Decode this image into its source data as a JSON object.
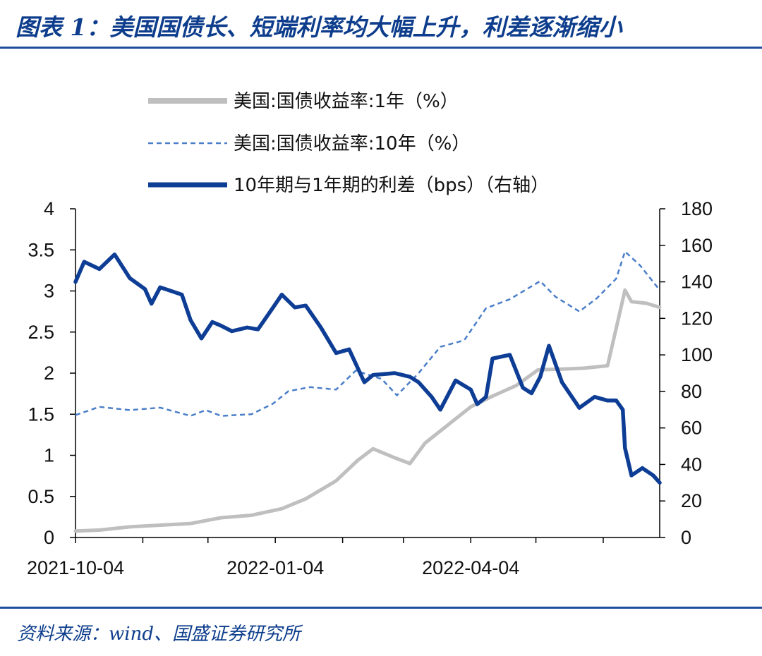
{
  "header": {
    "title": "图表 1：美国国债长、短端利率均大幅上升，利差逐渐缩小"
  },
  "footer": {
    "source": "资料来源：wind、国盛证券研究所"
  },
  "chart_data": {
    "type": "line",
    "title": "图表 1：美国国债长、短端利率均大幅上升，利差逐渐缩小",
    "x_type": "date",
    "xlim": [
      "2021-10-04",
      "2022-06-30"
    ],
    "x_tick_labels": [
      "2021-10-04",
      "2022-01-04",
      "2022-04-04"
    ],
    "ylim": [
      0,
      4
    ],
    "y_ticks": [
      0,
      0.5,
      1,
      1.5,
      2,
      2.5,
      3,
      3.5,
      4
    ],
    "y2lim": [
      0,
      180
    ],
    "y2_ticks": [
      0,
      20,
      40,
      60,
      80,
      100,
      120,
      140,
      160,
      180
    ],
    "legend_position": "top-center",
    "grid": false,
    "colors": {
      "one_year": "#bfbfbf",
      "ten_year": "#4a7ec8",
      "spread": "#0d3d94"
    },
    "series": [
      {
        "name": "美国:国债收益率:1年（%）",
        "axis": "left",
        "style": "solid-thick",
        "color": "#bfbfbf",
        "points": [
          [
            "2021-10-04",
            0.08
          ],
          [
            "2021-10-15",
            0.09
          ],
          [
            "2021-10-29",
            0.13
          ],
          [
            "2021-11-12",
            0.15
          ],
          [
            "2021-11-26",
            0.17
          ],
          [
            "2021-12-10",
            0.24
          ],
          [
            "2021-12-24",
            0.27
          ],
          [
            "2022-01-07",
            0.35
          ],
          [
            "2022-01-18",
            0.47
          ],
          [
            "2022-02-01",
            0.69
          ],
          [
            "2022-02-11",
            0.94
          ],
          [
            "2022-02-18",
            1.08
          ],
          [
            "2022-02-28",
            0.97
          ],
          [
            "2022-03-07",
            0.9
          ],
          [
            "2022-03-14",
            1.15
          ],
          [
            "2022-03-25",
            1.38
          ],
          [
            "2022-04-04",
            1.59
          ],
          [
            "2022-04-14",
            1.72
          ],
          [
            "2022-04-25",
            1.85
          ],
          [
            "2022-05-05",
            2.04
          ],
          [
            "2022-05-16",
            2.05
          ],
          [
            "2022-05-26",
            2.06
          ],
          [
            "2022-06-06",
            2.09
          ],
          [
            "2022-06-14",
            3.01
          ],
          [
            "2022-06-17",
            2.87
          ],
          [
            "2022-06-24",
            2.85
          ],
          [
            "2022-06-30",
            2.8
          ]
        ]
      },
      {
        "name": "美国:国债收益率:10年（%）",
        "axis": "left",
        "style": "dashed",
        "color": "#4a7ec8",
        "points": [
          [
            "2021-10-04",
            1.49
          ],
          [
            "2021-10-15",
            1.59
          ],
          [
            "2021-10-29",
            1.55
          ],
          [
            "2021-11-12",
            1.58
          ],
          [
            "2021-11-26",
            1.48
          ],
          [
            "2021-12-03",
            1.55
          ],
          [
            "2021-12-10",
            1.48
          ],
          [
            "2021-12-24",
            1.5
          ],
          [
            "2022-01-03",
            1.63
          ],
          [
            "2022-01-10",
            1.78
          ],
          [
            "2022-01-20",
            1.83
          ],
          [
            "2022-02-01",
            1.8
          ],
          [
            "2022-02-10",
            2.03
          ],
          [
            "2022-02-22",
            1.93
          ],
          [
            "2022-03-01",
            1.73
          ],
          [
            "2022-03-11",
            2.0
          ],
          [
            "2022-03-21",
            2.32
          ],
          [
            "2022-04-01",
            2.4
          ],
          [
            "2022-04-11",
            2.79
          ],
          [
            "2022-04-22",
            2.9
          ],
          [
            "2022-05-06",
            3.12
          ],
          [
            "2022-05-13",
            2.93
          ],
          [
            "2022-05-24",
            2.75
          ],
          [
            "2022-06-01",
            2.91
          ],
          [
            "2022-06-10",
            3.15
          ],
          [
            "2022-06-14",
            3.48
          ],
          [
            "2022-06-21",
            3.31
          ],
          [
            "2022-06-30",
            3.01
          ]
        ]
      },
      {
        "name": "10年期与1年期的利差（bps）（右轴）",
        "axis": "right",
        "style": "solid-thick",
        "color": "#0d3d94",
        "points": [
          [
            "2021-10-04",
            140
          ],
          [
            "2021-10-08",
            151
          ],
          [
            "2021-10-15",
            147
          ],
          [
            "2021-10-22",
            155
          ],
          [
            "2021-10-29",
            142
          ],
          [
            "2021-11-05",
            136
          ],
          [
            "2021-11-08",
            128
          ],
          [
            "2021-11-12",
            137
          ],
          [
            "2021-11-22",
            133
          ],
          [
            "2021-11-26",
            119
          ],
          [
            "2021-12-01",
            109
          ],
          [
            "2021-12-06",
            118
          ],
          [
            "2021-12-10",
            116
          ],
          [
            "2021-12-15",
            113
          ],
          [
            "2021-12-22",
            115
          ],
          [
            "2021-12-27",
            114
          ],
          [
            "2022-01-03",
            126
          ],
          [
            "2022-01-07",
            133
          ],
          [
            "2022-01-13",
            126
          ],
          [
            "2022-01-18",
            127
          ],
          [
            "2022-01-25",
            115
          ],
          [
            "2022-02-01",
            101
          ],
          [
            "2022-02-07",
            103
          ],
          [
            "2022-02-14",
            85
          ],
          [
            "2022-02-18",
            89
          ],
          [
            "2022-02-28",
            90
          ],
          [
            "2022-03-07",
            88
          ],
          [
            "2022-03-11",
            85
          ],
          [
            "2022-03-17",
            77
          ],
          [
            "2022-03-21",
            70
          ],
          [
            "2022-03-28",
            86
          ],
          [
            "2022-04-04",
            81
          ],
          [
            "2022-04-07",
            73
          ],
          [
            "2022-04-11",
            77
          ],
          [
            "2022-04-14",
            98
          ],
          [
            "2022-04-22",
            100
          ],
          [
            "2022-04-28",
            82
          ],
          [
            "2022-05-02",
            79
          ],
          [
            "2022-05-06",
            88
          ],
          [
            "2022-05-10",
            105
          ],
          [
            "2022-05-16",
            85
          ],
          [
            "2022-05-24",
            71
          ],
          [
            "2022-05-31",
            77
          ],
          [
            "2022-06-06",
            75
          ],
          [
            "2022-06-10",
            75
          ],
          [
            "2022-06-13",
            70
          ],
          [
            "2022-06-14",
            49
          ],
          [
            "2022-06-17",
            34
          ],
          [
            "2022-06-22",
            38
          ],
          [
            "2022-06-27",
            34
          ],
          [
            "2022-06-30",
            30
          ]
        ]
      }
    ]
  }
}
